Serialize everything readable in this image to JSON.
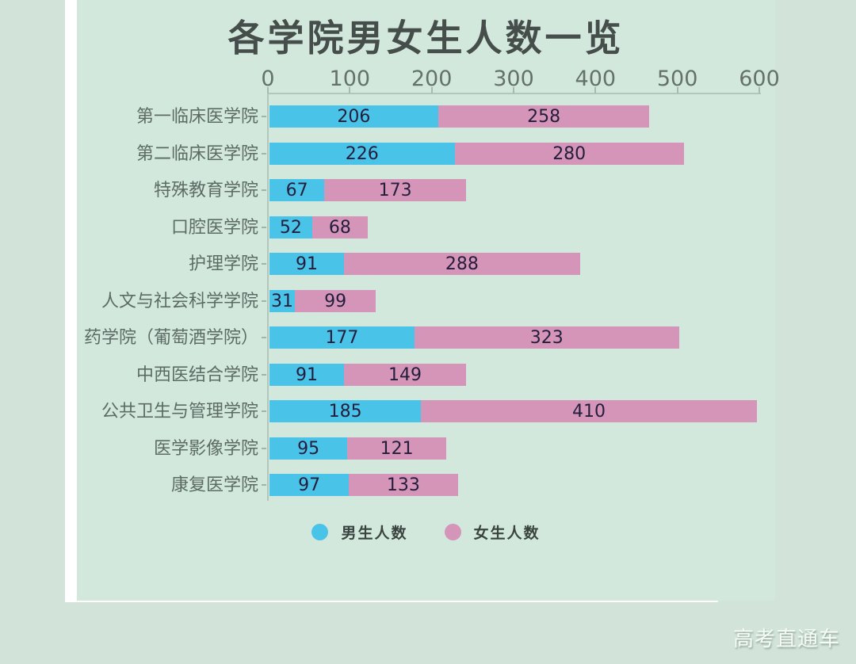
{
  "page": {
    "watermark": "高考直通车"
  },
  "colors": {
    "male_bar": "#4ac3e9",
    "female_bar": "#d495b8",
    "panel_background": "#d3e8dd",
    "outer_background": "#d2e4d9",
    "title_text": "#454e4b",
    "value_text": "#241e3c"
  },
  "chart_data": {
    "type": "bar",
    "orientation": "horizontal",
    "stacked": true,
    "title": "各学院男女生人数一览",
    "xlabel": "",
    "ylabel": "",
    "xlim": [
      0,
      600
    ],
    "x_ticks": [
      0,
      100,
      200,
      300,
      400,
      500,
      600
    ],
    "grid": false,
    "legend_position": "bottom",
    "categories": [
      "第一临床医学院",
      "第二临床医学院",
      "特殊教育学院",
      "口腔医学院",
      "护理学院",
      "人文与社会科学学院",
      "药学院（葡萄酒学院）",
      "中西医结合学院",
      "公共卫生与管理学院",
      "医学影像学院",
      "康复医学院"
    ],
    "series": [
      {
        "name": "男生人数",
        "color": "#4ac3e9",
        "values": [
          206,
          226,
          67,
          52,
          91,
          31,
          177,
          91,
          185,
          95,
          97
        ]
      },
      {
        "name": "女生人数",
        "color": "#d495b8",
        "values": [
          258,
          280,
          173,
          68,
          288,
          99,
          323,
          149,
          410,
          121,
          133
        ]
      }
    ]
  }
}
